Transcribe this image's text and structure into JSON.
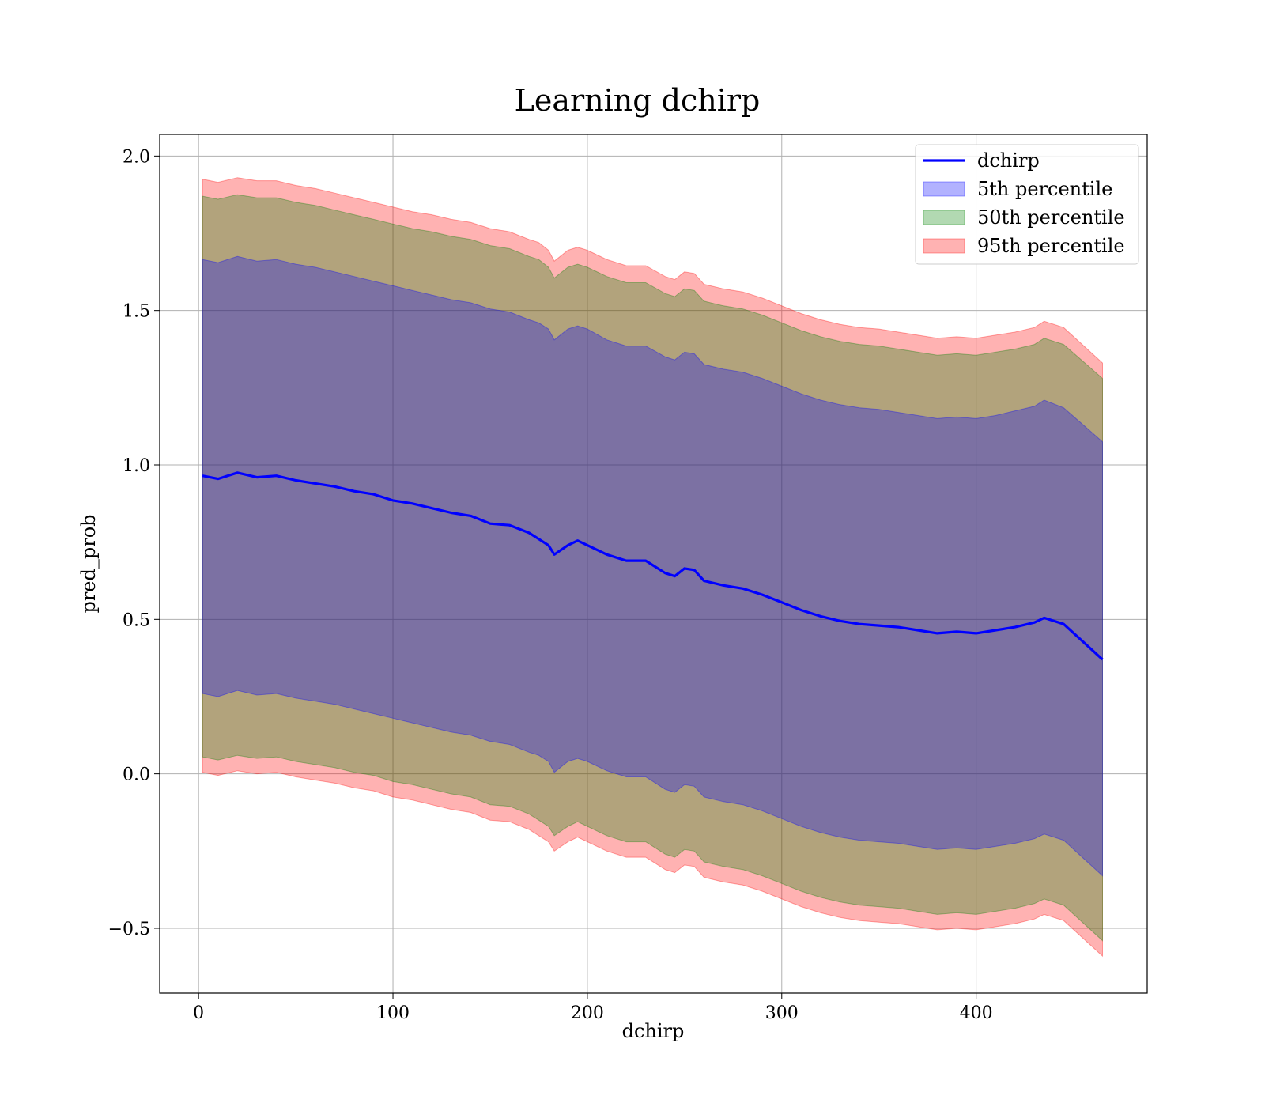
{
  "chart_data": {
    "type": "line",
    "title": "Learning dchirp",
    "xlabel": "dchirp",
    "ylabel": "pred_prob",
    "xlim": [
      -20,
      488
    ],
    "ylim": [
      -0.71,
      2.07
    ],
    "xticks": [
      0,
      100,
      200,
      300,
      400
    ],
    "yticks": [
      -0.5,
      0.0,
      0.5,
      1.0,
      1.5,
      2.0
    ],
    "xtick_labels": [
      "0",
      "100",
      "200",
      "300",
      "400"
    ],
    "ytick_labels": [
      "−0.5",
      "0.0",
      "0.5",
      "1.0",
      "1.5",
      "2.0"
    ],
    "grid": true,
    "legend_position": "top-right",
    "legend": [
      {
        "label": "dchirp",
        "kind": "line",
        "color": "#0000ff"
      },
      {
        "label": "5th percentile",
        "kind": "patch",
        "color": "#0000ff"
      },
      {
        "label": "50th percentile",
        "kind": "patch",
        "color": "#008000"
      },
      {
        "label": "95th percentile",
        "kind": "patch",
        "color": "#ff0000"
      }
    ],
    "x": [
      2,
      10,
      20,
      30,
      40,
      50,
      60,
      70,
      80,
      90,
      100,
      110,
      120,
      130,
      140,
      150,
      160,
      170,
      175,
      180,
      183,
      190,
      195,
      200,
      210,
      220,
      230,
      240,
      245,
      250,
      255,
      260,
      270,
      280,
      290,
      300,
      310,
      320,
      330,
      340,
      350,
      360,
      370,
      380,
      390,
      400,
      410,
      420,
      430,
      435,
      445,
      465
    ],
    "series": [
      {
        "name": "dchirp",
        "color": "#0000ff",
        "values": [
          0.965,
          0.955,
          0.975,
          0.96,
          0.965,
          0.95,
          0.94,
          0.93,
          0.915,
          0.905,
          0.885,
          0.875,
          0.86,
          0.845,
          0.835,
          0.81,
          0.805,
          0.78,
          0.76,
          0.74,
          0.71,
          0.74,
          0.755,
          0.74,
          0.71,
          0.69,
          0.69,
          0.65,
          0.64,
          0.665,
          0.66,
          0.625,
          0.61,
          0.6,
          0.58,
          0.555,
          0.53,
          0.51,
          0.495,
          0.485,
          0.48,
          0.475,
          0.465,
          0.455,
          0.46,
          0.455,
          0.465,
          0.475,
          0.49,
          0.505,
          0.485,
          0.37
        ]
      }
    ],
    "bands": [
      {
        "name": "95th percentile",
        "color": "#ff0000",
        "upper": [
          1.925,
          1.915,
          1.93,
          1.92,
          1.92,
          1.905,
          1.895,
          1.88,
          1.865,
          1.85,
          1.835,
          1.82,
          1.81,
          1.795,
          1.785,
          1.765,
          1.755,
          1.73,
          1.72,
          1.695,
          1.66,
          1.695,
          1.705,
          1.695,
          1.665,
          1.645,
          1.645,
          1.61,
          1.6,
          1.625,
          1.62,
          1.585,
          1.57,
          1.56,
          1.54,
          1.515,
          1.49,
          1.47,
          1.455,
          1.445,
          1.44,
          1.43,
          1.42,
          1.41,
          1.415,
          1.41,
          1.42,
          1.43,
          1.445,
          1.465,
          1.445,
          1.33
        ],
        "lower": [
          0.005,
          -0.005,
          0.01,
          0.0,
          0.005,
          -0.01,
          -0.02,
          -0.03,
          -0.045,
          -0.055,
          -0.075,
          -0.085,
          -0.1,
          -0.115,
          -0.125,
          -0.15,
          -0.155,
          -0.18,
          -0.2,
          -0.22,
          -0.25,
          -0.22,
          -0.205,
          -0.22,
          -0.25,
          -0.27,
          -0.27,
          -0.31,
          -0.32,
          -0.295,
          -0.3,
          -0.335,
          -0.35,
          -0.36,
          -0.38,
          -0.405,
          -0.43,
          -0.45,
          -0.465,
          -0.475,
          -0.48,
          -0.485,
          -0.495,
          -0.505,
          -0.5,
          -0.505,
          -0.495,
          -0.485,
          -0.47,
          -0.455,
          -0.475,
          -0.59
        ]
      },
      {
        "name": "50th percentile",
        "color": "#008000",
        "upper": [
          1.87,
          1.86,
          1.875,
          1.865,
          1.865,
          1.85,
          1.84,
          1.825,
          1.81,
          1.795,
          1.78,
          1.765,
          1.755,
          1.74,
          1.73,
          1.71,
          1.7,
          1.675,
          1.665,
          1.64,
          1.605,
          1.64,
          1.65,
          1.64,
          1.61,
          1.59,
          1.59,
          1.555,
          1.545,
          1.57,
          1.565,
          1.53,
          1.515,
          1.505,
          1.485,
          1.46,
          1.435,
          1.415,
          1.4,
          1.39,
          1.385,
          1.375,
          1.365,
          1.355,
          1.36,
          1.355,
          1.365,
          1.375,
          1.39,
          1.41,
          1.39,
          1.28
        ],
        "lower": [
          0.055,
          0.045,
          0.06,
          0.05,
          0.055,
          0.04,
          0.03,
          0.02,
          0.005,
          -0.005,
          -0.025,
          -0.035,
          -0.05,
          -0.065,
          -0.075,
          -0.1,
          -0.105,
          -0.13,
          -0.15,
          -0.17,
          -0.2,
          -0.17,
          -0.155,
          -0.17,
          -0.2,
          -0.22,
          -0.22,
          -0.26,
          -0.27,
          -0.245,
          -0.25,
          -0.285,
          -0.3,
          -0.31,
          -0.33,
          -0.355,
          -0.38,
          -0.4,
          -0.415,
          -0.425,
          -0.43,
          -0.435,
          -0.445,
          -0.455,
          -0.45,
          -0.455,
          -0.445,
          -0.435,
          -0.42,
          -0.405,
          -0.425,
          -0.54
        ]
      },
      {
        "name": "5th percentile",
        "color": "#0000ff",
        "upper": [
          1.665,
          1.655,
          1.675,
          1.66,
          1.665,
          1.65,
          1.64,
          1.625,
          1.61,
          1.595,
          1.58,
          1.565,
          1.55,
          1.535,
          1.525,
          1.505,
          1.495,
          1.47,
          1.46,
          1.44,
          1.405,
          1.44,
          1.45,
          1.44,
          1.405,
          1.385,
          1.385,
          1.35,
          1.34,
          1.365,
          1.36,
          1.325,
          1.31,
          1.3,
          1.28,
          1.255,
          1.23,
          1.21,
          1.195,
          1.185,
          1.18,
          1.17,
          1.16,
          1.15,
          1.155,
          1.15,
          1.16,
          1.175,
          1.19,
          1.21,
          1.185,
          1.075
        ],
        "lower": [
          0.26,
          0.25,
          0.27,
          0.255,
          0.26,
          0.245,
          0.235,
          0.225,
          0.21,
          0.195,
          0.18,
          0.165,
          0.15,
          0.135,
          0.125,
          0.105,
          0.095,
          0.07,
          0.06,
          0.04,
          0.005,
          0.04,
          0.05,
          0.04,
          0.01,
          -0.01,
          -0.01,
          -0.05,
          -0.06,
          -0.035,
          -0.04,
          -0.075,
          -0.09,
          -0.1,
          -0.12,
          -0.145,
          -0.17,
          -0.19,
          -0.205,
          -0.215,
          -0.22,
          -0.225,
          -0.235,
          -0.245,
          -0.24,
          -0.245,
          -0.235,
          -0.225,
          -0.21,
          -0.195,
          -0.215,
          -0.33
        ]
      }
    ]
  }
}
